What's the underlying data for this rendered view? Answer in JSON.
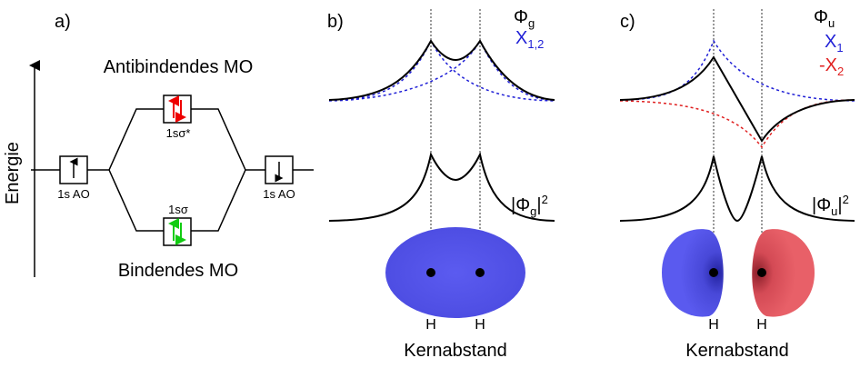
{
  "panel_a": {
    "label": "a)",
    "axis": "Energie",
    "antibonding": "Antibindendes MO",
    "bonding": "Bindendes MO",
    "left_ao": "1s AO",
    "right_ao": "1s AO",
    "sigma_star": "1sσ*",
    "sigma": "1sσ"
  },
  "panel_b": {
    "label": "b)",
    "phi": {
      "main": "Φ",
      "sub": "g"
    },
    "chi": {
      "main": "X",
      "sub": "1,2"
    },
    "density": {
      "main": "|Φ",
      "sub": "g",
      "end": "|",
      "sup": "2"
    },
    "nuclei": [
      "H",
      "H"
    ],
    "x_label": "Kernabstand"
  },
  "panel_c": {
    "label": "c)",
    "phi": {
      "main": "Φ",
      "sub": "u"
    },
    "chi1": {
      "main": "X",
      "sub": "1"
    },
    "chi2": {
      "main": "-X",
      "sub": "2"
    },
    "density": {
      "main": "|Φ",
      "sub": "u",
      "end": "|",
      "sup": "2"
    },
    "nuclei": [
      "H",
      "H"
    ],
    "x_label": "Kernabstand"
  }
}
